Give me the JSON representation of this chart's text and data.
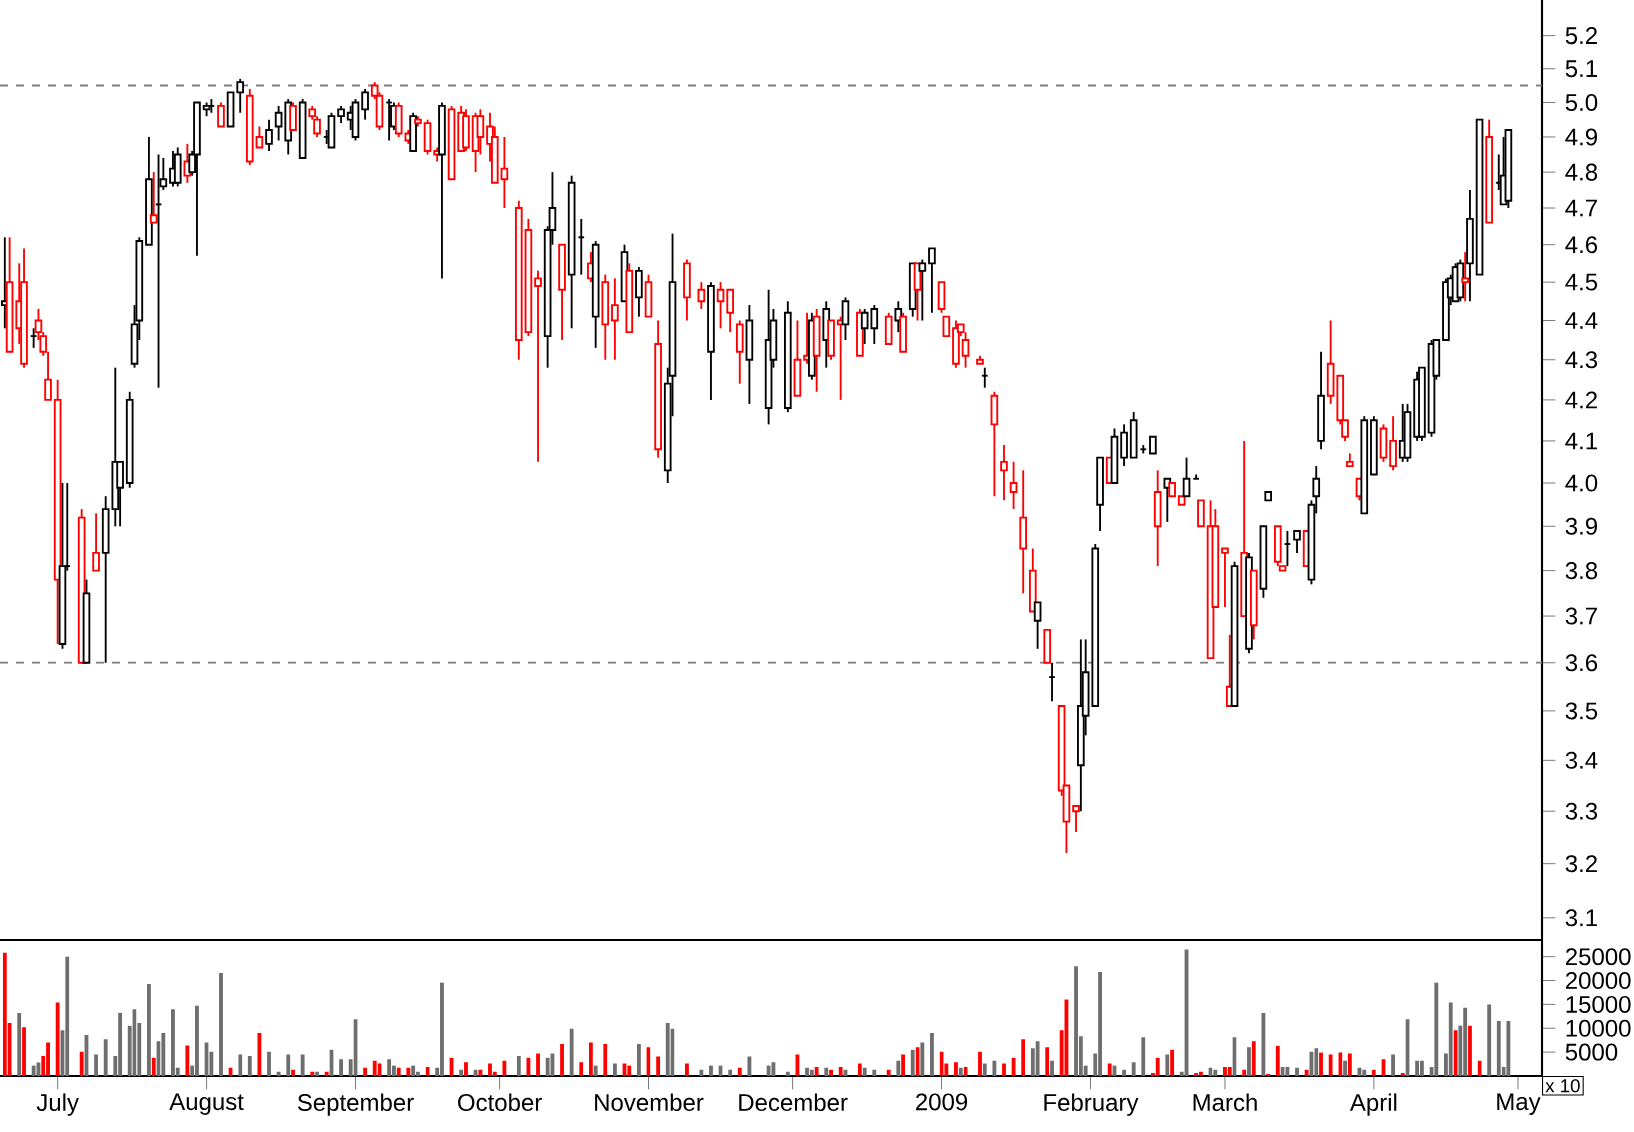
{
  "chart_data": [
    {
      "type": "candlestick",
      "log": "y",
      "tick_labels": "y",
      "xlim": [
        "2008-06-19",
        "2009-05-06"
      ],
      "ylim": [
        3.06,
        5.31
      ],
      "yticks": [
        3.1,
        3.2,
        3.3,
        3.4,
        3.5,
        3.6,
        3.7,
        3.8,
        3.9,
        {
          "value": 4.0,
          "label": "4.0"
        },
        4.1,
        4.2,
        4.3,
        4.4,
        4.5,
        4.6,
        4.7,
        4.8,
        4.9,
        {
          "value": 5.0,
          "label": "5.0"
        },
        5.1,
        5.2
      ],
      "ref_lines": [
        {
          "axis": "y",
          "value": 5.05,
          "color": "#808080",
          "line_style": "dashed"
        },
        {
          "axis": "y",
          "value": 3.6,
          "color": "#808080",
          "line_style": "dashed"
        }
      ],
      "x": [
        "2008-06-20",
        "2008-06-21",
        "2008-06-23",
        "2008-06-24",
        "2008-06-26",
        "2008-06-27",
        "2008-06-28",
        "2008-06-29",
        "2008-07-01",
        "2008-07-02",
        "2008-07-03",
        "2008-07-06",
        "2008-07-07",
        "2008-07-09",
        "2008-07-11",
        "2008-07-13",
        "2008-07-14",
        "2008-07-16",
        "2008-07-17",
        "2008-07-18",
        "2008-07-20",
        "2008-07-21",
        "2008-07-22",
        "2008-07-23",
        "2008-07-25",
        "2008-07-26",
        "2008-07-28",
        "2008-07-29",
        "2008-07-30",
        "2008-08-01",
        "2008-08-02",
        "2008-08-04",
        "2008-08-06",
        "2008-08-08",
        "2008-08-10",
        "2008-08-12",
        "2008-08-14",
        "2008-08-16",
        "2008-08-18",
        "2008-08-19",
        "2008-08-21",
        "2008-08-23",
        "2008-08-24",
        "2008-08-26",
        "2008-08-27",
        "2008-08-29",
        "2008-08-31",
        "2008-09-01",
        "2008-09-03",
        "2008-09-05",
        "2008-09-06",
        "2008-09-08",
        "2008-09-09",
        "2008-09-10",
        "2008-09-12",
        "2008-09-13",
        "2008-09-14",
        "2008-09-16",
        "2008-09-18",
        "2008-09-19",
        "2008-09-21",
        "2008-09-23",
        "2008-09-24",
        "2008-09-26",
        "2008-09-27",
        "2008-09-29",
        "2008-09-30",
        "2008-10-02",
        "2008-10-05",
        "2008-10-07",
        "2008-10-09",
        "2008-10-11",
        "2008-10-12",
        "2008-10-14",
        "2008-10-16",
        "2008-10-18",
        "2008-10-20",
        "2008-10-21",
        "2008-10-23",
        "2008-10-25",
        "2008-10-27",
        "2008-10-28",
        "2008-10-30",
        "2008-11-01",
        "2008-11-03",
        "2008-11-05",
        "2008-11-06",
        "2008-11-09",
        "2008-11-12",
        "2008-11-14",
        "2008-11-16",
        "2008-11-18",
        "2008-11-20",
        "2008-11-22",
        "2008-11-26",
        "2008-11-27",
        "2008-11-30",
        "2008-12-02",
        "2008-12-04",
        "2008-12-05",
        "2008-12-06",
        "2008-12-08",
        "2008-12-09",
        "2008-12-11",
        "2008-12-12",
        "2008-12-15",
        "2008-12-16",
        "2008-12-18",
        "2008-12-21",
        "2008-12-23",
        "2008-12-24",
        "2008-12-26",
        "2008-12-27",
        "2008-12-28",
        "2008-12-30",
        "2009-01-01",
        "2009-01-02",
        "2009-01-04",
        "2009-01-05",
        "2009-01-06",
        "2009-01-09",
        "2009-01-10",
        "2009-01-12",
        "2009-01-14",
        "2009-01-16",
        "2009-01-18",
        "2009-01-20",
        "2009-01-21",
        "2009-01-23",
        "2009-01-24",
        "2009-01-26",
        "2009-01-27",
        "2009-01-29",
        "2009-01-30",
        "2009-01-31",
        "2009-02-02",
        "2009-02-03",
        "2009-02-05",
        "2009-02-06",
        "2009-02-08",
        "2009-02-10",
        "2009-02-12",
        "2009-02-14",
        "2009-02-15",
        "2009-02-17",
        "2009-02-18",
        "2009-02-20",
        "2009-02-21",
        "2009-02-23",
        "2009-02-24",
        "2009-02-26",
        "2009-02-27",
        "2009-03-01",
        "2009-03-02",
        "2009-03-03",
        "2009-03-05",
        "2009-03-06",
        "2009-03-07",
        "2009-03-09",
        "2009-03-10",
        "2009-03-12",
        "2009-03-13",
        "2009-03-14",
        "2009-03-16",
        "2009-03-18",
        "2009-03-19",
        "2009-03-20",
        "2009-03-21",
        "2009-03-23",
        "2009-03-25",
        "2009-03-26",
        "2009-03-27",
        "2009-03-29",
        "2009-03-30",
        "2009-04-01",
        "2009-04-03",
        "2009-04-05",
        "2009-04-07",
        "2009-04-08",
        "2009-04-10",
        "2009-04-11",
        "2009-04-13",
        "2009-04-14",
        "2009-04-16",
        "2009-04-17",
        "2009-04-18",
        "2009-04-19",
        "2009-04-20",
        "2009-04-21",
        "2009-04-23",
        "2009-04-25",
        "2009-04-27",
        "2009-04-28",
        "2009-04-29"
      ],
      "ohlc": [
        [
          4.44,
          4.62,
          4.38,
          4.45
        ],
        [
          4.5,
          4.62,
          4.32,
          4.32
        ],
        [
          4.45,
          4.55,
          4.34,
          4.38
        ],
        [
          4.5,
          4.59,
          4.28,
          4.29
        ],
        [
          4.36,
          4.38,
          4.33,
          4.36
        ],
        [
          4.4,
          4.43,
          4.35,
          4.37
        ],
        [
          4.36,
          4.37,
          4.31,
          4.32
        ],
        [
          4.25,
          4.32,
          4.2,
          4.2
        ],
        [
          4.2,
          4.25,
          3.64,
          3.78
        ],
        [
          3.64,
          4.0,
          3.63,
          3.81
        ],
        [
          3.81,
          4.0,
          3.8,
          3.81
        ],
        [
          3.92,
          3.94,
          3.6,
          3.6
        ],
        [
          3.6,
          3.78,
          3.6,
          3.75
        ],
        [
          3.84,
          3.93,
          3.8,
          3.8
        ],
        [
          3.84,
          3.97,
          3.6,
          3.94
        ],
        [
          3.94,
          4.28,
          3.9,
          4.05
        ],
        [
          3.99,
          4.05,
          3.9,
          4.05
        ],
        [
          4.0,
          4.22,
          3.99,
          4.2
        ],
        [
          4.29,
          4.44,
          4.28,
          4.39
        ],
        [
          4.4,
          4.62,
          4.35,
          4.61
        ],
        [
          4.6,
          4.9,
          4.6,
          4.78
        ],
        [
          4.68,
          4.8,
          4.66,
          4.66
        ],
        [
          4.71,
          4.85,
          4.23,
          4.71
        ],
        [
          4.76,
          4.84,
          4.75,
          4.78
        ],
        [
          4.77,
          4.86,
          4.76,
          4.81
        ],
        [
          4.77,
          4.87,
          4.76,
          4.85
        ],
        [
          4.83,
          4.88,
          4.77,
          4.79
        ],
        [
          4.8,
          4.86,
          4.79,
          4.85
        ],
        [
          4.85,
          5.0,
          4.57,
          5.0
        ],
        [
          4.98,
          5.0,
          4.96,
          4.99
        ],
        [
          4.99,
          5.01,
          4.97,
          4.99
        ],
        [
          4.99,
          5.0,
          4.93,
          4.93
        ],
        [
          4.93,
          5.03,
          4.93,
          5.03
        ],
        [
          5.03,
          5.07,
          4.97,
          5.06
        ],
        [
          5.02,
          5.04,
          4.82,
          4.83
        ],
        [
          4.9,
          4.93,
          4.87,
          4.87
        ],
        [
          4.88,
          4.95,
          4.86,
          4.92
        ],
        [
          4.93,
          4.99,
          4.89,
          4.97
        ],
        [
          4.89,
          5.01,
          4.85,
          5.0
        ],
        [
          4.99,
          5.0,
          4.92,
          4.92
        ],
        [
          4.84,
          5.01,
          4.84,
          5.0
        ],
        [
          4.98,
          4.99,
          4.95,
          4.96
        ],
        [
          4.95,
          4.96,
          4.9,
          4.91
        ],
        [
          4.9,
          4.92,
          4.88,
          4.9
        ],
        [
          4.87,
          4.97,
          4.87,
          4.96
        ],
        [
          4.96,
          4.99,
          4.94,
          4.98
        ],
        [
          4.95,
          4.99,
          4.92,
          4.97
        ],
        [
          4.9,
          5.01,
          4.89,
          5.0
        ],
        [
          4.98,
          5.04,
          4.95,
          5.03
        ],
        [
          5.05,
          5.06,
          5.01,
          5.02
        ],
        [
          5.02,
          5.03,
          4.92,
          4.93
        ],
        [
          5.0,
          5.01,
          4.89,
          5.0
        ],
        [
          4.93,
          5.0,
          4.92,
          4.99
        ],
        [
          4.99,
          5.0,
          4.9,
          4.91
        ],
        [
          4.91,
          4.92,
          4.88,
          4.89
        ],
        [
          4.86,
          4.97,
          4.86,
          4.96
        ],
        [
          4.95,
          4.96,
          4.93,
          4.94
        ],
        [
          4.94,
          4.95,
          4.85,
          4.86
        ],
        [
          4.86,
          4.87,
          4.83,
          4.85
        ],
        [
          4.85,
          5.0,
          4.51,
          4.99
        ],
        [
          4.98,
          4.99,
          4.78,
          4.78
        ],
        [
          4.97,
          4.99,
          4.86,
          4.86
        ],
        [
          4.96,
          4.98,
          4.86,
          4.87
        ],
        [
          4.96,
          4.97,
          4.8,
          4.86
        ],
        [
          4.96,
          4.98,
          4.85,
          4.9
        ],
        [
          4.93,
          4.97,
          4.83,
          4.88
        ],
        [
          4.9,
          4.93,
          4.77,
          4.77
        ],
        [
          4.81,
          4.9,
          4.7,
          4.78
        ],
        [
          4.7,
          4.72,
          4.3,
          4.35
        ],
        [
          4.64,
          4.67,
          4.36,
          4.37
        ],
        [
          4.51,
          4.53,
          4.05,
          4.49
        ],
        [
          4.36,
          4.65,
          4.28,
          4.64
        ],
        [
          4.64,
          4.8,
          4.6,
          4.7
        ],
        [
          4.6,
          4.6,
          4.35,
          4.48
        ],
        [
          4.52,
          4.79,
          4.38,
          4.77
        ],
        [
          4.62,
          4.67,
          4.52,
          4.62
        ],
        [
          4.55,
          4.58,
          4.5,
          4.51
        ],
        [
          4.41,
          4.61,
          4.33,
          4.6
        ],
        [
          4.5,
          4.52,
          4.3,
          4.39
        ],
        [
          4.44,
          4.51,
          4.3,
          4.4
        ],
        [
          4.45,
          4.6,
          4.45,
          4.58
        ],
        [
          4.53,
          4.55,
          4.37,
          4.37
        ],
        [
          4.46,
          4.54,
          4.41,
          4.53
        ],
        [
          4.5,
          4.52,
          4.41,
          4.41
        ],
        [
          4.34,
          4.4,
          4.06,
          4.08
        ],
        [
          4.03,
          4.28,
          4.0,
          4.24
        ],
        [
          4.26,
          4.63,
          4.16,
          4.5
        ],
        [
          4.55,
          4.56,
          4.4,
          4.46
        ],
        [
          4.48,
          4.5,
          4.43,
          4.45
        ],
        [
          4.32,
          4.5,
          4.2,
          4.49
        ],
        [
          4.48,
          4.5,
          4.38,
          4.45
        ],
        [
          4.48,
          4.48,
          4.37,
          4.42
        ],
        [
          4.39,
          4.4,
          4.24,
          4.32
        ],
        [
          4.3,
          4.44,
          4.19,
          4.4
        ],
        [
          4.18,
          4.48,
          4.14,
          4.35
        ],
        [
          4.3,
          4.43,
          4.28,
          4.4
        ],
        [
          4.18,
          4.45,
          4.17,
          4.42
        ],
        [
          4.3,
          4.4,
          4.21,
          4.21
        ],
        [
          4.31,
          4.42,
          4.29,
          4.3
        ],
        [
          4.26,
          4.42,
          4.25,
          4.4
        ],
        [
          4.41,
          4.43,
          4.22,
          4.31
        ],
        [
          4.35,
          4.45,
          4.28,
          4.43
        ],
        [
          4.4,
          4.4,
          4.3,
          4.31
        ],
        [
          4.4,
          4.41,
          4.2,
          4.39
        ],
        [
          4.39,
          4.46,
          4.35,
          4.45
        ],
        [
          4.42,
          4.43,
          4.31,
          4.31
        ],
        [
          4.38,
          4.43,
          4.34,
          4.42
        ],
        [
          4.38,
          4.44,
          4.34,
          4.43
        ],
        [
          4.41,
          4.42,
          4.34,
          4.34
        ],
        [
          4.4,
          4.45,
          4.37,
          4.43
        ],
        [
          4.41,
          4.42,
          4.32,
          4.32
        ],
        [
          4.43,
          4.55,
          4.41,
          4.55
        ],
        [
          4.55,
          4.55,
          4.4,
          4.48
        ],
        [
          4.53,
          4.56,
          4.4,
          4.55
        ],
        [
          4.55,
          4.59,
          4.42,
          4.59
        ],
        [
          4.5,
          4.5,
          4.42,
          4.43
        ],
        [
          4.41,
          4.41,
          4.36,
          4.36
        ],
        [
          4.38,
          4.4,
          4.28,
          4.29
        ],
        [
          4.39,
          4.39,
          4.36,
          4.37
        ],
        [
          4.35,
          4.37,
          4.28,
          4.31
        ],
        [
          4.3,
          4.31,
          4.29,
          4.29
        ],
        [
          4.26,
          4.28,
          4.23,
          4.26
        ],
        [
          4.21,
          4.22,
          3.97,
          4.14
        ],
        [
          4.05,
          4.09,
          3.96,
          4.03
        ],
        [
          4.0,
          4.05,
          3.94,
          3.98
        ],
        [
          3.92,
          4.03,
          3.75,
          3.85
        ],
        [
          3.8,
          3.85,
          3.71,
          3.71
        ],
        [
          3.69,
          3.73,
          3.63,
          3.73
        ],
        [
          3.67,
          3.67,
          3.6,
          3.6
        ],
        [
          3.57,
          3.6,
          3.52,
          3.57
        ],
        [
          3.51,
          3.51,
          3.33,
          3.34
        ],
        [
          3.35,
          3.35,
          3.22,
          3.28
        ],
        [
          3.31,
          3.31,
          3.26,
          3.3
        ],
        [
          3.39,
          3.65,
          3.3,
          3.51
        ],
        [
          3.49,
          3.65,
          3.45,
          3.58
        ],
        [
          3.51,
          3.86,
          3.51,
          3.85
        ],
        [
          3.95,
          4.06,
          3.89,
          4.06
        ],
        [
          4.06,
          4.06,
          4.0,
          4.0
        ],
        [
          4.0,
          4.13,
          4.0,
          4.11
        ],
        [
          4.06,
          4.14,
          4.04,
          4.12
        ],
        [
          4.06,
          4.17,
          4.06,
          4.15
        ],
        [
          4.08,
          4.09,
          4.07,
          4.08
        ],
        [
          4.07,
          4.11,
          4.07,
          4.11
        ],
        [
          3.98,
          4.03,
          3.81,
          3.9
        ],
        [
          3.99,
          4.01,
          3.91,
          4.01
        ],
        [
          4.0,
          4.0,
          3.97,
          3.97
        ],
        [
          3.97,
          3.97,
          3.95,
          3.95
        ],
        [
          3.97,
          4.06,
          3.97,
          4.01
        ],
        [
          4.01,
          4.02,
          4.01,
          4.01
        ],
        [
          3.96,
          3.96,
          3.9,
          3.9
        ],
        [
          3.9,
          3.96,
          3.61,
          3.61
        ],
        [
          3.9,
          3.94,
          3.72,
          3.72
        ],
        [
          3.85,
          3.85,
          3.72,
          3.84
        ],
        [
          3.55,
          3.66,
          3.51,
          3.51
        ],
        [
          3.51,
          3.82,
          3.51,
          3.81
        ],
        [
          3.84,
          4.1,
          3.7,
          3.7
        ],
        [
          3.63,
          3.84,
          3.62,
          3.83
        ],
        [
          3.8,
          3.8,
          3.65,
          3.68
        ],
        [
          3.76,
          3.9,
          3.74,
          3.9
        ],
        [
          3.96,
          3.98,
          3.96,
          3.98
        ],
        [
          3.9,
          3.9,
          3.81,
          3.82
        ],
        [
          3.81,
          3.81,
          3.8,
          3.8
        ],
        [
          3.86,
          3.89,
          3.81,
          3.86
        ],
        [
          3.87,
          3.89,
          3.84,
          3.89
        ],
        [
          3.89,
          3.89,
          3.81,
          3.81
        ],
        [
          3.78,
          3.96,
          3.77,
          3.95
        ],
        [
          3.97,
          4.04,
          3.93,
          4.01
        ],
        [
          4.1,
          4.32,
          4.08,
          4.21
        ],
        [
          4.29,
          4.4,
          4.19,
          4.21
        ],
        [
          4.26,
          4.26,
          4.14,
          4.15
        ],
        [
          4.15,
          4.15,
          4.1,
          4.11
        ],
        [
          4.05,
          4.07,
          4.04,
          4.04
        ],
        [
          4.01,
          4.01,
          3.96,
          3.97
        ],
        [
          3.93,
          4.16,
          3.93,
          4.15
        ],
        [
          4.02,
          4.16,
          4.02,
          4.15
        ],
        [
          4.13,
          4.14,
          4.05,
          4.06
        ],
        [
          4.1,
          4.16,
          4.03,
          4.04
        ],
        [
          4.06,
          4.19,
          4.05,
          4.1
        ],
        [
          4.06,
          4.19,
          4.05,
          4.17
        ],
        [
          4.11,
          4.27,
          4.1,
          4.25
        ],
        [
          4.11,
          4.28,
          4.1,
          4.28
        ],
        [
          4.12,
          4.35,
          4.11,
          4.34
        ],
        [
          4.26,
          4.35,
          4.25,
          4.35
        ],
        [
          4.35,
          4.51,
          4.35,
          4.5
        ],
        [
          4.46,
          4.52,
          4.44,
          4.51
        ],
        [
          4.45,
          4.55,
          4.45,
          4.54
        ],
        [
          4.46,
          4.56,
          4.45,
          4.55
        ],
        [
          4.51,
          4.58,
          4.45,
          4.5
        ],
        [
          4.55,
          4.75,
          4.45,
          4.67
        ],
        [
          4.52,
          4.95,
          4.52,
          4.95
        ],
        [
          4.9,
          4.95,
          4.66,
          4.66
        ],
        [
          4.77,
          4.85,
          4.75,
          4.77
        ],
        [
          4.71,
          4.9,
          4.71,
          4.79
        ],
        [
          4.72,
          4.92,
          4.7,
          4.92
        ]
      ],
      "colors": [
        "#000000",
        "#ff0000",
        "#ff0000",
        "#ff0000",
        "#000000",
        "#ff0000",
        "#ff0000",
        "#ff0000",
        "#ff0000",
        "#000000",
        "#000000",
        "#ff0000",
        "#000000",
        "#ff0000",
        "#000000",
        "#000000",
        "#000000",
        "#000000",
        "#000000",
        "#000000",
        "#000000",
        "#ff0000",
        "#000000",
        "#000000",
        "#000000",
        "#000000",
        "#ff0000",
        "#000000",
        "#000000",
        "#000000",
        "#000000",
        "#ff0000",
        "#000000",
        "#000000",
        "#ff0000",
        "#ff0000",
        "#000000",
        "#000000",
        "#000000",
        "#ff0000",
        "#000000",
        "#ff0000",
        "#ff0000",
        "#000000",
        "#000000",
        "#000000",
        "#000000",
        "#000000",
        "#000000",
        "#ff0000",
        "#ff0000",
        "#000000",
        "#000000",
        "#ff0000",
        "#ff0000",
        "#000000",
        "#ff0000",
        "#ff0000",
        "#ff0000",
        "#000000",
        "#ff0000",
        "#ff0000",
        "#ff0000",
        "#ff0000",
        "#ff0000",
        "#ff0000",
        "#ff0000",
        "#ff0000",
        "#ff0000",
        "#ff0000",
        "#ff0000",
        "#000000",
        "#000000",
        "#ff0000",
        "#000000",
        "#000000",
        "#ff0000",
        "#000000",
        "#ff0000",
        "#ff0000",
        "#000000",
        "#ff0000",
        "#000000",
        "#ff0000",
        "#ff0000",
        "#000000",
        "#000000",
        "#ff0000",
        "#ff0000",
        "#000000",
        "#ff0000",
        "#ff0000",
        "#ff0000",
        "#000000",
        "#000000",
        "#000000",
        "#000000",
        "#ff0000",
        "#ff0000",
        "#000000",
        "#ff0000",
        "#000000",
        "#ff0000",
        "#ff0000",
        "#000000",
        "#ff0000",
        "#000000",
        "#000000",
        "#ff0000",
        "#000000",
        "#ff0000",
        "#000000",
        "#ff0000",
        "#000000",
        "#000000",
        "#ff0000",
        "#ff0000",
        "#ff0000",
        "#ff0000",
        "#ff0000",
        "#ff0000",
        "#000000",
        "#ff0000",
        "#ff0000",
        "#ff0000",
        "#ff0000",
        "#ff0000",
        "#000000",
        "#ff0000",
        "#000000",
        "#ff0000",
        "#ff0000",
        "#ff0000",
        "#000000",
        "#000000",
        "#000000",
        "#000000",
        "#ff0000",
        "#000000",
        "#000000",
        "#000000",
        "#000000",
        "#000000",
        "#ff0000",
        "#000000",
        "#ff0000",
        "#ff0000",
        "#000000",
        "#000000",
        "#ff0000",
        "#ff0000",
        "#ff0000",
        "#ff0000",
        "#ff0000",
        "#000000",
        "#ff0000",
        "#000000",
        "#ff0000",
        "#000000",
        "#000000",
        "#ff0000",
        "#ff0000",
        "#000000",
        "#000000",
        "#ff0000",
        "#000000",
        "#000000",
        "#000000",
        "#ff0000",
        "#ff0000",
        "#ff0000",
        "#ff0000",
        "#ff0000",
        "#000000",
        "#000000",
        "#ff0000",
        "#ff0000",
        "#000000",
        "#000000",
        "#000000",
        "#000000",
        "#000000",
        "#000000",
        "#000000",
        "#000000",
        "#000000",
        "#000000",
        "#ff0000",
        "#000000",
        "#000000",
        "#ff0000",
        "#000000",
        "#000000",
        "#000000"
      ]
    },
    {
      "type": "bar",
      "annotations": [
        "x 10"
      ],
      "xlim": [
        "2008-06-19",
        "2009-05-06"
      ],
      "ylim": [
        0,
        28500
      ],
      "yticks": [
        5000,
        10000,
        15000,
        20000,
        25000
      ],
      "xticks": [
        {
          "value": "2008-07-01",
          "label": "July"
        },
        {
          "value": "2008-08-01",
          "label": "August"
        },
        {
          "value": "2008-09-01",
          "label": "September"
        },
        {
          "value": "2008-10-01",
          "label": "October"
        },
        {
          "value": "2008-11-01",
          "label": "November"
        },
        {
          "value": "2008-12-01",
          "label": "December"
        },
        {
          "value": "2009-01-01",
          "label": "2009"
        },
        {
          "value": "2009-02-01",
          "label": "February"
        },
        {
          "value": "2009-03-01",
          "label": "March"
        },
        {
          "value": "2009-04-01",
          "label": "April"
        },
        {
          "value": "2009-05-01",
          "label": "May"
        }
      ],
      "x": [
        "2008-06-20",
        "2008-06-21",
        "2008-06-23",
        "2008-06-24",
        "2008-06-26",
        "2008-06-27",
        "2008-06-28",
        "2008-06-29",
        "2008-07-01",
        "2008-07-02",
        "2008-07-03",
        "2008-07-06",
        "2008-07-07",
        "2008-07-09",
        "2008-07-11",
        "2008-07-13",
        "2008-07-14",
        "2008-07-16",
        "2008-07-17",
        "2008-07-18",
        "2008-07-20",
        "2008-07-21",
        "2008-07-22",
        "2008-07-23",
        "2008-07-25",
        "2008-07-26",
        "2008-07-28",
        "2008-07-29",
        "2008-07-30",
        "2008-08-01",
        "2008-08-02",
        "2008-08-04",
        "2008-08-06",
        "2008-08-08",
        "2008-08-10",
        "2008-08-12",
        "2008-08-14",
        "2008-08-16",
        "2008-08-18",
        "2008-08-19",
        "2008-08-21",
        "2008-08-23",
        "2008-08-24",
        "2008-08-26",
        "2008-08-27",
        "2008-08-29",
        "2008-08-31",
        "2008-09-01",
        "2008-09-03",
        "2008-09-05",
        "2008-09-06",
        "2008-09-08",
        "2008-09-09",
        "2008-09-10",
        "2008-09-12",
        "2008-09-13",
        "2008-09-14",
        "2008-09-16",
        "2008-09-18",
        "2008-09-19",
        "2008-09-21",
        "2008-09-23",
        "2008-09-24",
        "2008-09-26",
        "2008-09-27",
        "2008-09-29",
        "2008-09-30",
        "2008-10-02",
        "2008-10-05",
        "2008-10-07",
        "2008-10-09",
        "2008-10-11",
        "2008-10-12",
        "2008-10-14",
        "2008-10-16",
        "2008-10-18",
        "2008-10-20",
        "2008-10-21",
        "2008-10-23",
        "2008-10-25",
        "2008-10-27",
        "2008-10-28",
        "2008-10-30",
        "2008-11-01",
        "2008-11-03",
        "2008-11-05",
        "2008-11-06",
        "2008-11-09",
        "2008-11-12",
        "2008-11-14",
        "2008-11-16",
        "2008-11-18",
        "2008-11-20",
        "2008-11-22",
        "2008-11-26",
        "2008-11-27",
        "2008-11-30",
        "2008-12-02",
        "2008-12-04",
        "2008-12-05",
        "2008-12-06",
        "2008-12-08",
        "2008-12-09",
        "2008-12-11",
        "2008-12-12",
        "2008-12-15",
        "2008-12-16",
        "2008-12-18",
        "2008-12-21",
        "2008-12-23",
        "2008-12-24",
        "2008-12-26",
        "2008-12-27",
        "2008-12-28",
        "2008-12-30",
        "2009-01-01",
        "2009-01-02",
        "2009-01-04",
        "2009-01-05",
        "2009-01-06",
        "2009-01-09",
        "2009-01-10",
        "2009-01-12",
        "2009-01-14",
        "2009-01-16",
        "2009-01-18",
        "2009-01-20",
        "2009-01-21",
        "2009-01-23",
        "2009-01-24",
        "2009-01-26",
        "2009-01-27",
        "2009-01-29",
        "2009-01-30",
        "2009-01-31",
        "2009-02-02",
        "2009-02-03",
        "2009-02-05",
        "2009-02-06",
        "2009-02-08",
        "2009-02-10",
        "2009-02-12",
        "2009-02-14",
        "2009-02-15",
        "2009-02-17",
        "2009-02-18",
        "2009-02-20",
        "2009-02-21",
        "2009-02-23",
        "2009-02-24",
        "2009-02-26",
        "2009-02-27",
        "2009-03-01",
        "2009-03-02",
        "2009-03-03",
        "2009-03-05",
        "2009-03-06",
        "2009-03-07",
        "2009-03-09",
        "2009-03-10",
        "2009-03-12",
        "2009-03-13",
        "2009-03-14",
        "2009-03-16",
        "2009-03-18",
        "2009-03-19",
        "2009-03-20",
        "2009-03-21",
        "2009-03-23",
        "2009-03-25",
        "2009-03-26",
        "2009-03-27",
        "2009-03-29",
        "2009-03-30",
        "2009-04-01",
        "2009-04-03",
        "2009-04-05",
        "2009-04-07",
        "2009-04-08",
        "2009-04-10",
        "2009-04-11",
        "2009-04-13",
        "2009-04-14",
        "2009-04-16",
        "2009-04-17",
        "2009-04-18",
        "2009-04-19",
        "2009-04-20",
        "2009-04-21",
        "2009-04-23",
        "2009-04-25",
        "2009-04-27",
        "2009-04-28",
        "2009-04-29"
      ],
      "values": [
        25800,
        11100,
        13200,
        10200,
        2200,
        2800,
        4200,
        7000,
        15400,
        9600,
        25000,
        5100,
        8600,
        4500,
        7700,
        4200,
        13200,
        10500,
        14000,
        11100,
        19300,
        3800,
        7300,
        9000,
        14000,
        1700,
        6400,
        2200,
        14700,
        7000,
        5100,
        21600,
        1700,
        4500,
        4200,
        9000,
        5100,
        900,
        4500,
        1300,
        4500,
        900,
        900,
        900,
        5500,
        3500,
        3500,
        11900,
        1700,
        3200,
        2600,
        3500,
        2200,
        1700,
        1700,
        2200,
        900,
        1900,
        1700,
        19600,
        3800,
        1300,
        2900,
        1300,
        1300,
        2600,
        900,
        3200,
        4200,
        3800,
        4700,
        3800,
        4700,
        6700,
        9900,
        2900,
        7000,
        2200,
        6700,
        2600,
        2600,
        2200,
        6700,
        6000,
        4100,
        11100,
        9900,
        2600,
        1300,
        2200,
        2200,
        1300,
        1700,
        4100,
        2200,
        2900,
        900,
        4500,
        1700,
        1300,
        1900,
        1700,
        1300,
        1900,
        1300,
        2600,
        1700,
        1300,
        1300,
        3200,
        4500,
        5500,
        6000,
        7000,
        9000,
        5100,
        2600,
        2900,
        1700,
        1900,
        5100,
        2600,
        3200,
        2600,
        3800,
        7700,
        5800,
        7300,
        6000,
        3200,
        9600,
        16000,
        23000,
        8300,
        2200,
        4700,
        21800,
        2600,
        2200,
        1300,
        2900,
        8100,
        600,
        3800,
        4500,
        5500,
        900,
        26500,
        600,
        900,
        1700,
        1300,
        1900,
        1900,
        8100,
        1300,
        6000,
        7300,
        13200,
        400,
        6300,
        1900,
        1900,
        1700,
        1300,
        5100,
        5800,
        4900,
        4500,
        4900,
        3200,
        4700,
        1700,
        1300,
        1300,
        3500,
        4500,
        600,
        11900,
        3200,
        3200,
        1900,
        19600,
        4700,
        15400,
        9600,
        10600,
        14300,
        10500,
        3200,
        15000,
        11500,
        1900,
        11500
      ],
      "colors": [
        "#ff0000",
        "#ff0000",
        "#6e6e6e",
        "#ff0000",
        "#6e6e6e",
        "#6e6e6e",
        "#ff0000",
        "#ff0000",
        "#ff0000",
        "#6e6e6e",
        "#6e6e6e",
        "#ff0000",
        "#6e6e6e",
        "#6e6e6e",
        "#6e6e6e",
        "#6e6e6e",
        "#6e6e6e",
        "#6e6e6e",
        "#6e6e6e",
        "#6e6e6e",
        "#6e6e6e",
        "#ff0000",
        "#6e6e6e",
        "#6e6e6e",
        "#6e6e6e",
        "#6e6e6e",
        "#ff0000",
        "#6e6e6e",
        "#6e6e6e",
        "#6e6e6e",
        "#6e6e6e",
        "#6e6e6e",
        "#ff0000",
        "#6e6e6e",
        "#6e6e6e",
        "#ff0000",
        "#6e6e6e",
        "#6e6e6e",
        "#6e6e6e",
        "#ff0000",
        "#6e6e6e",
        "#ff0000",
        "#6e6e6e",
        "#ff0000",
        "#6e6e6e",
        "#6e6e6e",
        "#6e6e6e",
        "#6e6e6e",
        "#ff0000",
        "#ff0000",
        "#ff0000",
        "#6e6e6e",
        "#6e6e6e",
        "#ff0000",
        "#ff0000",
        "#6e6e6e",
        "#6e6e6e",
        "#ff0000",
        "#6e6e6e",
        "#6e6e6e",
        "#ff0000",
        "#6e6e6e",
        "#ff0000",
        "#6e6e6e",
        "#ff0000",
        "#ff0000",
        "#ff0000",
        "#ff0000",
        "#6e6e6e",
        "#ff0000",
        "#ff0000",
        "#6e6e6e",
        "#6e6e6e",
        "#ff0000",
        "#6e6e6e",
        "#ff0000",
        "#ff0000",
        "#6e6e6e",
        "#ff0000",
        "#6e6e6e",
        "#ff0000",
        "#ff0000",
        "#6e6e6e",
        "#ff0000",
        "#ff0000",
        "#6e6e6e",
        "#6e6e6e",
        "#ff0000",
        "#6e6e6e",
        "#6e6e6e",
        "#6e6e6e",
        "#6e6e6e",
        "#ff0000",
        "#6e6e6e",
        "#6e6e6e",
        "#6e6e6e",
        "#6e6e6e",
        "#ff0000",
        "#6e6e6e",
        "#6e6e6e",
        "#ff0000",
        "#6e6e6e",
        "#ff0000",
        "#ff0000",
        "#6e6e6e",
        "#ff0000",
        "#6e6e6e",
        "#6e6e6e",
        "#ff0000",
        "#6e6e6e",
        "#ff0000",
        "#6e6e6e",
        "#ff0000",
        "#6e6e6e",
        "#6e6e6e",
        "#ff0000",
        "#ff0000",
        "#ff0000",
        "#6e6e6e",
        "#ff0000",
        "#ff0000",
        "#6e6e6e",
        "#6e6e6e",
        "#ff0000",
        "#ff0000",
        "#ff0000",
        "#6e6e6e",
        "#6e6e6e",
        "#ff0000",
        "#6e6e6e",
        "#ff0000",
        "#ff0000",
        "#6e6e6e",
        "#6e6e6e",
        "#6e6e6e",
        "#6e6e6e",
        "#6e6e6e",
        "#ff0000",
        "#6e6e6e",
        "#6e6e6e",
        "#6e6e6e",
        "#6e6e6e",
        "#ff0000",
        "#ff0000",
        "#6e6e6e",
        "#ff0000",
        "#6e6e6e",
        "#6e6e6e",
        "#ff0000",
        "#ff0000",
        "#6e6e6e",
        "#6e6e6e",
        "#ff0000",
        "#ff0000",
        "#6e6e6e",
        "#ff0000",
        "#6e6e6e",
        "#ff0000",
        "#6e6e6e",
        "#ff0000",
        "#ff0000",
        "#6e6e6e",
        "#6e6e6e",
        "#6e6e6e",
        "#ff0000",
        "#6e6e6e",
        "#6e6e6e",
        "#ff0000",
        "#ff0000",
        "#ff0000",
        "#6e6e6e",
        "#ff0000",
        "#6e6e6e",
        "#6e6e6e",
        "#ff0000",
        "#ff0000",
        "#6e6e6e",
        "#ff0000",
        "#6e6e6e",
        "#6e6e6e",
        "#6e6e6e",
        "#6e6e6e",
        "#6e6e6e",
        "#6e6e6e",
        "#6e6e6e",
        "#ff0000",
        "#6e6e6e",
        "#6e6e6e",
        "#ff0000",
        "#ff0000",
        "#6e6e6e",
        "#6e6e6e",
        "#6e6e6e",
        "#6e6e6e"
      ]
    }
  ]
}
